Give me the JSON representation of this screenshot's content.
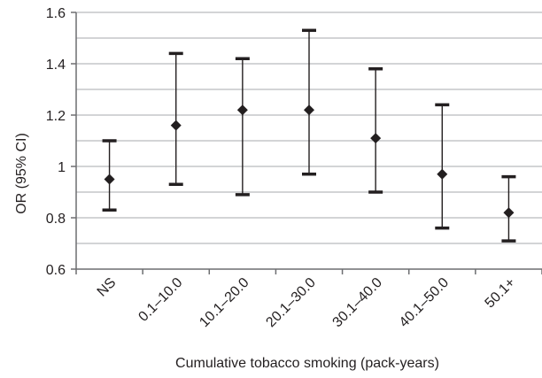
{
  "chart_data": {
    "type": "scatter",
    "title": "",
    "xlabel": "Cumulative tobacco smoking (pack-years)",
    "ylabel": "OR (95% CI)",
    "categories": [
      "NS",
      "0.1–10.0",
      "10.1–20.0",
      "20.1–30.0",
      "30.1–40.0",
      "40.1–50.0",
      "50.1+"
    ],
    "series": [
      {
        "values": [
          0.95,
          1.16,
          1.22,
          1.22,
          1.11,
          0.97,
          0.82
        ],
        "lower": [
          0.83,
          0.93,
          0.89,
          0.97,
          0.9,
          0.76,
          0.71
        ],
        "upper": [
          1.1,
          1.44,
          1.42,
          1.53,
          1.38,
          1.24,
          0.96
        ]
      }
    ],
    "ylim": [
      0.6,
      1.6
    ],
    "yticks": [
      0.6,
      0.8,
      1,
      1.2,
      1.4,
      1.6
    ],
    "yticks_labels": [
      "0.6",
      "0.8",
      "1",
      "1.2",
      "1.4",
      "1.6"
    ],
    "minor_gridlines_step": 0.1,
    "grid": true,
    "legend": "none",
    "colors": {
      "marker": "#231f20",
      "errorbar": "#231f20",
      "grid": "#a7a9ac",
      "axis": "#6d6e71"
    }
  }
}
